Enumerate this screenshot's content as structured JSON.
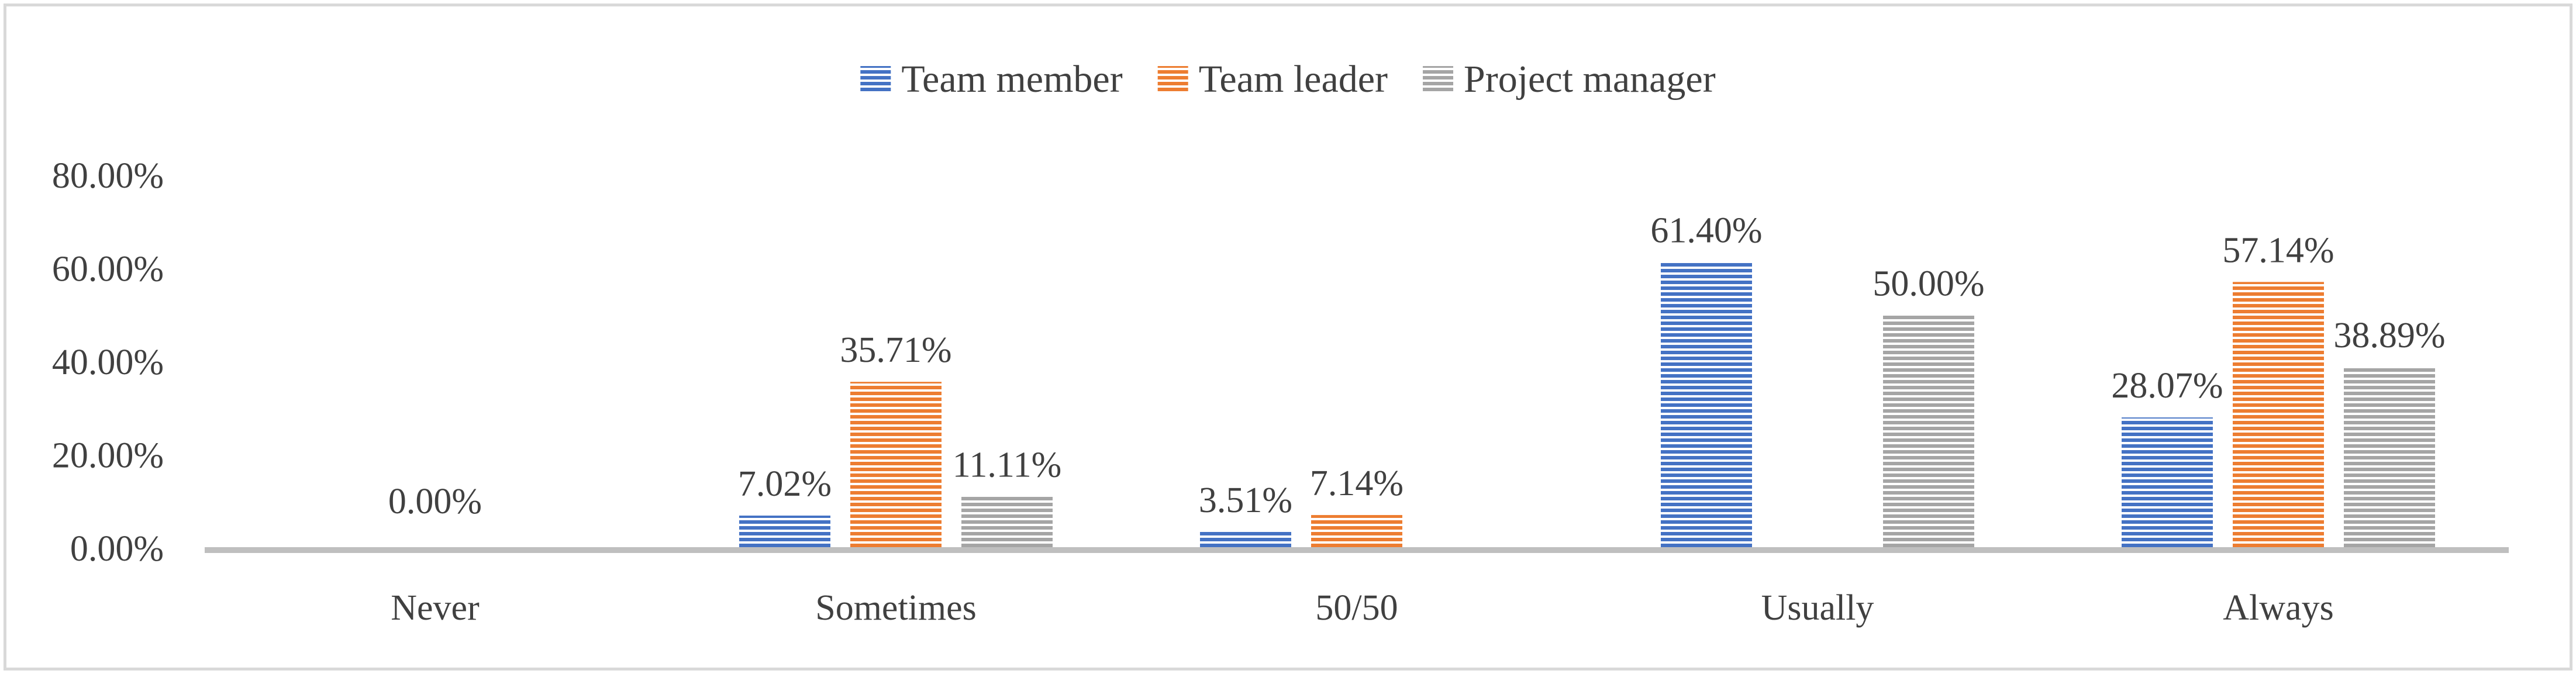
{
  "chart_data": {
    "type": "bar",
    "categories": [
      "Never",
      "Sometimes",
      "50/50",
      "Usually",
      "Always"
    ],
    "series": [
      {
        "name": "Team member",
        "color": "#4472c4",
        "values": [
          0.0,
          7.02,
          3.51,
          61.4,
          28.07
        ],
        "labels": [
          "",
          "7.02%",
          "3.51%",
          "61.40%",
          "28.07%"
        ]
      },
      {
        "name": "Team leader",
        "color": "#ed7d31",
        "values": [
          null,
          35.71,
          7.14,
          null,
          57.14
        ],
        "labels": [
          "",
          "35.71%",
          "7.14%",
          "",
          "57.14%"
        ]
      },
      {
        "name": "Project manager",
        "color": "#a5a5a5",
        "values": [
          null,
          11.11,
          null,
          50.0,
          38.89
        ],
        "labels": [
          "",
          "11.11%",
          "",
          "50.00%",
          "38.89%"
        ]
      }
    ],
    "category_label": {
      "index": 0,
      "text": "0.00%"
    },
    "ylim": [
      0,
      80
    ],
    "yticks": [
      "0.00%",
      "20.00%",
      "40.00%",
      "60.00%",
      "80.00%"
    ],
    "ytick_values": [
      0,
      20,
      40,
      60,
      80
    ],
    "legend_position": "top",
    "grid": false,
    "fill_pattern": "horizontal-stripes"
  }
}
